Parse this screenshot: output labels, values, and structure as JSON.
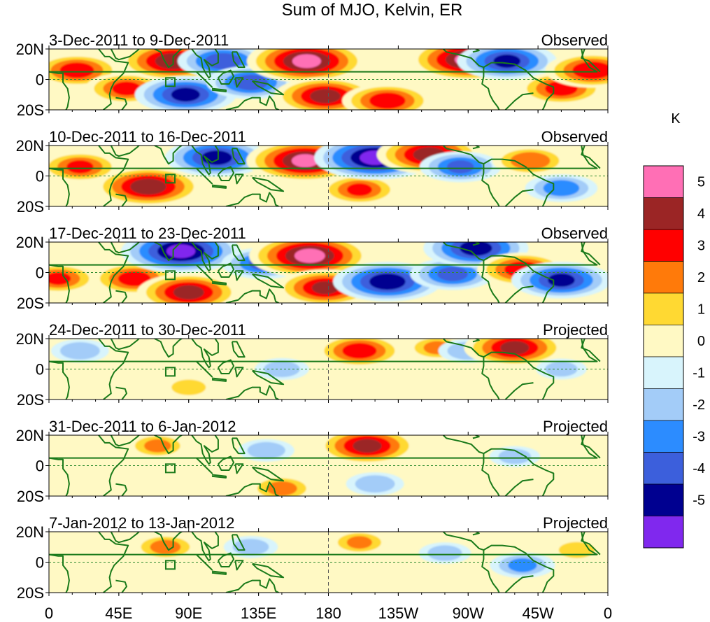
{
  "chart_data": {
    "type": "heatmap",
    "title": "Sum of MJO, Kelvin, ER",
    "colorbar": {
      "units": "K",
      "levels": [
        "5",
        "4",
        "3",
        "2",
        "1",
        "0",
        "-1",
        "-2",
        "-3",
        "-4",
        "-5"
      ],
      "colors": [
        "#ff6fb5",
        "#9b2525",
        "#ff0000",
        "#ff7a0a",
        "#ffd932",
        "#fff9c4",
        "#d8f4fc",
        "#a3ccf8",
        "#2c8cff",
        "#3c5fdc",
        "#000090",
        "#8028ee"
      ]
    },
    "axes": {
      "xlim": [
        0,
        360
      ],
      "ylim": [
        -20,
        20
      ],
      "x_ticks": [
        "0",
        "45E",
        "90E",
        "135E",
        "180",
        "135W",
        "90W",
        "45W",
        "0"
      ],
      "y_ticks": [
        "20N",
        "0",
        "20S"
      ]
    },
    "panels": [
      {
        "date_range": "3-Dec-2011 to 9-Dec-2011",
        "status": "Observed",
        "anomalies": [
          {
            "lon": 18,
            "lat": 6,
            "value": 3.5
          },
          {
            "lon": 50,
            "lat": -6,
            "value": 3.2
          },
          {
            "lon": 80,
            "lat": 12,
            "value": 4.6
          },
          {
            "lon": 88,
            "lat": -10,
            "value": -4.2
          },
          {
            "lon": 112,
            "lat": 12,
            "value": -3.6
          },
          {
            "lon": 130,
            "lat": -2,
            "value": -3.5
          },
          {
            "lon": 166,
            "lat": 12,
            "value": 5.2
          },
          {
            "lon": 178,
            "lat": -11,
            "value": 4.3
          },
          {
            "lon": 218,
            "lat": -14,
            "value": 3.6
          },
          {
            "lon": 270,
            "lat": 13,
            "value": 5.1
          },
          {
            "lon": 295,
            "lat": 12,
            "value": -4.1
          },
          {
            "lon": 330,
            "lat": -6,
            "value": 3.4
          },
          {
            "lon": 350,
            "lat": 6,
            "value": 3.8
          }
        ]
      },
      {
        "date_range": "10-Dec-2011 to 16-Dec-2011",
        "status": "Observed",
        "anomalies": [
          {
            "lon": 20,
            "lat": 6,
            "value": 3.1
          },
          {
            "lon": 64,
            "lat": -7,
            "value": 4.6
          },
          {
            "lon": 108,
            "lat": 12,
            "value": -4.3
          },
          {
            "lon": 165,
            "lat": 10,
            "value": 5.1
          },
          {
            "lon": 200,
            "lat": -9,
            "value": 3.0
          },
          {
            "lon": 210,
            "lat": 12,
            "value": -5.3
          },
          {
            "lon": 245,
            "lat": 14,
            "value": 4.4
          },
          {
            "lon": 265,
            "lat": 6,
            "value": -3.1
          },
          {
            "lon": 310,
            "lat": 10,
            "value": 2.8
          },
          {
            "lon": 330,
            "lat": -8,
            "value": -2.6
          }
        ]
      },
      {
        "date_range": "17-Dec-2011 to 23-Dec-2011",
        "status": "Observed",
        "anomalies": [
          {
            "lon": 6,
            "lat": -4,
            "value": 3.0
          },
          {
            "lon": 55,
            "lat": -4,
            "value": 3.4
          },
          {
            "lon": 85,
            "lat": 14,
            "value": -5.2
          },
          {
            "lon": 90,
            "lat": -13,
            "value": 4.3
          },
          {
            "lon": 138,
            "lat": 6,
            "value": -3.2
          },
          {
            "lon": 168,
            "lat": 11,
            "value": 5.3
          },
          {
            "lon": 178,
            "lat": -10,
            "value": 4.1
          },
          {
            "lon": 218,
            "lat": -6,
            "value": -4.6
          },
          {
            "lon": 260,
            "lat": -1,
            "value": -3.3
          },
          {
            "lon": 275,
            "lat": 16,
            "value": -4.4
          },
          {
            "lon": 305,
            "lat": 2,
            "value": 3.6
          },
          {
            "lon": 330,
            "lat": -5,
            "value": -4.1
          }
        ]
      },
      {
        "date_range": "24-Dec-2011 to 30-Dec-2011",
        "status": "Projected",
        "anomalies": [
          {
            "lon": 20,
            "lat": 12,
            "value": -1.8
          },
          {
            "lon": 90,
            "lat": -12,
            "value": 1.5
          },
          {
            "lon": 150,
            "lat": 0,
            "value": -1.6
          },
          {
            "lon": 200,
            "lat": 12,
            "value": 3.5
          },
          {
            "lon": 250,
            "lat": 14,
            "value": 2.1
          },
          {
            "lon": 270,
            "lat": 12,
            "value": -1.9
          },
          {
            "lon": 300,
            "lat": 14,
            "value": 4.2
          },
          {
            "lon": 330,
            "lat": 0,
            "value": -1.4
          }
        ]
      },
      {
        "date_range": "31-Dec-2011 to 6-Jan-2012",
        "status": "Projected",
        "anomalies": [
          {
            "lon": 70,
            "lat": 13,
            "value": 2.1
          },
          {
            "lon": 140,
            "lat": 10,
            "value": -1.7
          },
          {
            "lon": 150,
            "lat": -15,
            "value": 2.3
          },
          {
            "lon": 205,
            "lat": 13,
            "value": 4.2
          },
          {
            "lon": 210,
            "lat": -12,
            "value": -1.8
          },
          {
            "lon": 300,
            "lat": 6,
            "value": -1.4
          }
        ]
      },
      {
        "date_range": "7-Jan-2012 to 13-Jan-2012",
        "status": "Projected",
        "anomalies": [
          {
            "lon": 75,
            "lat": 10,
            "value": 2.3
          },
          {
            "lon": 130,
            "lat": 10,
            "value": -1.6
          },
          {
            "lon": 200,
            "lat": 13,
            "value": 2.0
          },
          {
            "lon": 255,
            "lat": 6,
            "value": -1.5
          },
          {
            "lon": 305,
            "lat": -2,
            "value": -2.2
          },
          {
            "lon": 340,
            "lat": 8,
            "value": 1.6
          }
        ]
      }
    ]
  }
}
